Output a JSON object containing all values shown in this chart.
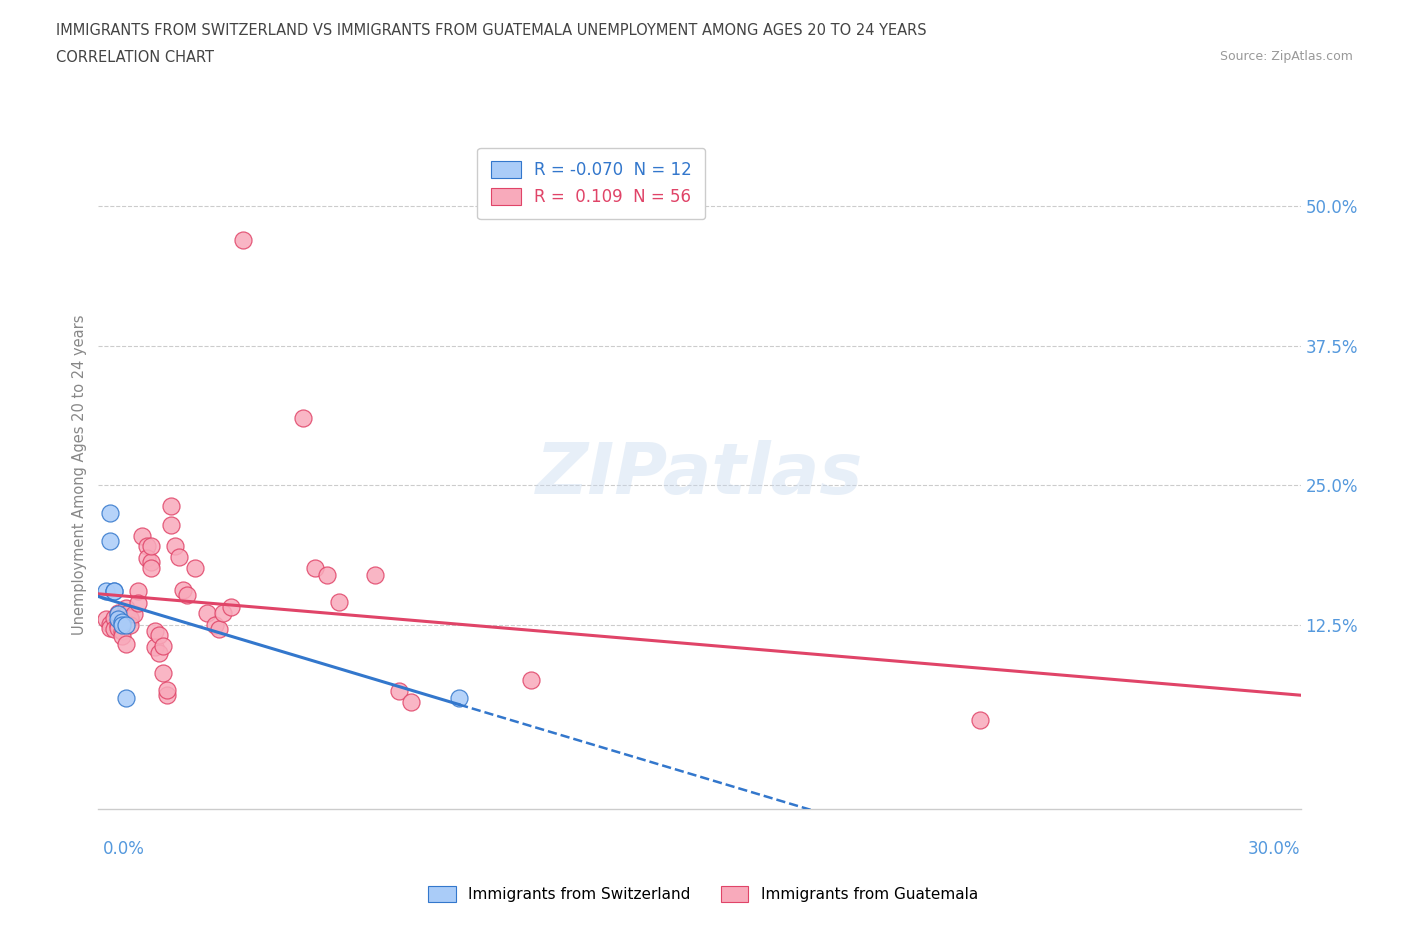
{
  "title_line1": "IMMIGRANTS FROM SWITZERLAND VS IMMIGRANTS FROM GUATEMALA UNEMPLOYMENT AMONG AGES 20 TO 24 YEARS",
  "title_line2": "CORRELATION CHART",
  "source": "Source: ZipAtlas.com",
  "ylabel": "Unemployment Among Ages 20 to 24 years",
  "ytick_labels": [
    "12.5%",
    "25.0%",
    "37.5%",
    "50.0%"
  ],
  "ytick_values": [
    0.125,
    0.25,
    0.375,
    0.5
  ],
  "xlim": [
    0.0,
    0.3
  ],
  "ylim": [
    -0.04,
    0.56
  ],
  "legend_r_swiss": "-0.070",
  "legend_n_swiss": "12",
  "legend_r_guat": "0.109",
  "legend_n_guat": "56",
  "swiss_color": "#aaccf8",
  "guat_color": "#f8aabb",
  "swiss_line_color": "#3377cc",
  "guat_line_color": "#e04468",
  "label_color": "#5599dd",
  "swiss_scatter": [
    [
      0.002,
      0.155
    ],
    [
      0.003,
      0.225
    ],
    [
      0.003,
      0.2
    ],
    [
      0.004,
      0.155
    ],
    [
      0.004,
      0.155
    ],
    [
      0.005,
      0.135
    ],
    [
      0.005,
      0.13
    ],
    [
      0.006,
      0.128
    ],
    [
      0.006,
      0.125
    ],
    [
      0.007,
      0.125
    ],
    [
      0.007,
      0.06
    ],
    [
      0.09,
      0.06
    ]
  ],
  "guat_scatter": [
    [
      0.002,
      0.13
    ],
    [
      0.003,
      0.126
    ],
    [
      0.003,
      0.122
    ],
    [
      0.004,
      0.131
    ],
    [
      0.004,
      0.121
    ],
    [
      0.005,
      0.136
    ],
    [
      0.005,
      0.125
    ],
    [
      0.005,
      0.122
    ],
    [
      0.006,
      0.13
    ],
    [
      0.006,
      0.12
    ],
    [
      0.006,
      0.115
    ],
    [
      0.007,
      0.108
    ],
    [
      0.007,
      0.14
    ],
    [
      0.007,
      0.135
    ],
    [
      0.008,
      0.131
    ],
    [
      0.008,
      0.131
    ],
    [
      0.008,
      0.125
    ],
    [
      0.009,
      0.135
    ],
    [
      0.01,
      0.155
    ],
    [
      0.01,
      0.145
    ],
    [
      0.011,
      0.205
    ],
    [
      0.012,
      0.196
    ],
    [
      0.012,
      0.185
    ],
    [
      0.013,
      0.181
    ],
    [
      0.013,
      0.196
    ],
    [
      0.013,
      0.176
    ],
    [
      0.014,
      0.12
    ],
    [
      0.014,
      0.105
    ],
    [
      0.015,
      0.116
    ],
    [
      0.015,
      0.1
    ],
    [
      0.016,
      0.106
    ],
    [
      0.016,
      0.082
    ],
    [
      0.017,
      0.062
    ],
    [
      0.017,
      0.067
    ],
    [
      0.018,
      0.232
    ],
    [
      0.018,
      0.215
    ],
    [
      0.019,
      0.196
    ],
    [
      0.02,
      0.186
    ],
    [
      0.021,
      0.156
    ],
    [
      0.022,
      0.152
    ],
    [
      0.024,
      0.176
    ],
    [
      0.027,
      0.136
    ],
    [
      0.029,
      0.125
    ],
    [
      0.03,
      0.121
    ],
    [
      0.031,
      0.136
    ],
    [
      0.033,
      0.141
    ],
    [
      0.036,
      0.47
    ],
    [
      0.051,
      0.31
    ],
    [
      0.054,
      0.176
    ],
    [
      0.057,
      0.17
    ],
    [
      0.06,
      0.146
    ],
    [
      0.069,
      0.17
    ],
    [
      0.075,
      0.066
    ],
    [
      0.078,
      0.056
    ],
    [
      0.108,
      0.076
    ],
    [
      0.22,
      0.04
    ]
  ]
}
